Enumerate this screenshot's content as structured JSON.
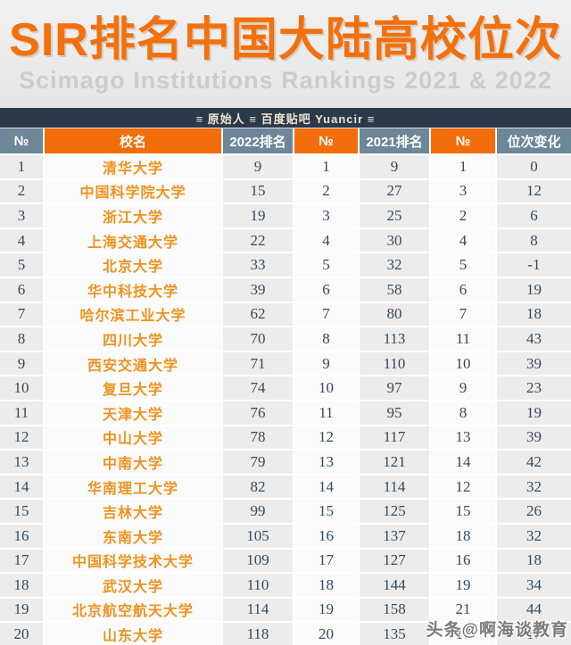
{
  "title": "SIR排名中国大陆高校位次",
  "subtitle": "Scimago Institutions Rankings 2021 & 2022",
  "credit": "≡ 原始人 ≡ 百度贴吧 Yuancir ≡",
  "watermark": "头条@啊海谈教育",
  "colors": {
    "title_orange": "#f2700e",
    "header_orange": "#f46d0b",
    "header_blue_gray": "#6d8698",
    "credit_bar_bg": "#2b3a49",
    "university_orange": "#f0921e",
    "value_text": "#344a5e",
    "cell_gray": "#ececec",
    "cell_white": "#fbfbfb",
    "hero_bg": "#eaeaea"
  },
  "chart_data": {
    "type": "table",
    "title": "SIR排名中国大陆高校位次",
    "subtitle": "Scimago Institutions Rankings 2021 & 2022",
    "columns": [
      "№",
      "校名",
      "2022排名",
      "№",
      "2021排名",
      "№",
      "位次变化"
    ],
    "rows": [
      [
        "1",
        "清华大学",
        "9",
        "1",
        "9",
        "1",
        "0"
      ],
      [
        "2",
        "中国科学院大学",
        "15",
        "2",
        "27",
        "3",
        "12"
      ],
      [
        "3",
        "浙江大学",
        "19",
        "3",
        "25",
        "2",
        "6"
      ],
      [
        "4",
        "上海交通大学",
        "22",
        "4",
        "30",
        "4",
        "8"
      ],
      [
        "5",
        "北京大学",
        "33",
        "5",
        "32",
        "5",
        "-1"
      ],
      [
        "6",
        "华中科技大学",
        "39",
        "6",
        "58",
        "6",
        "19"
      ],
      [
        "7",
        "哈尔滨工业大学",
        "62",
        "7",
        "80",
        "7",
        "18"
      ],
      [
        "8",
        "四川大学",
        "70",
        "8",
        "113",
        "11",
        "43"
      ],
      [
        "9",
        "西安交通大学",
        "71",
        "9",
        "110",
        "10",
        "39"
      ],
      [
        "10",
        "复旦大学",
        "74",
        "10",
        "97",
        "9",
        "23"
      ],
      [
        "11",
        "天津大学",
        "76",
        "11",
        "95",
        "8",
        "19"
      ],
      [
        "12",
        "中山大学",
        "78",
        "12",
        "117",
        "13",
        "39"
      ],
      [
        "13",
        "中南大学",
        "79",
        "13",
        "121",
        "14",
        "42"
      ],
      [
        "14",
        "华南理工大学",
        "82",
        "14",
        "114",
        "12",
        "32"
      ],
      [
        "15",
        "吉林大学",
        "99",
        "15",
        "125",
        "15",
        "26"
      ],
      [
        "16",
        "东南大学",
        "105",
        "16",
        "137",
        "18",
        "32"
      ],
      [
        "17",
        "中国科学技术大学",
        "109",
        "17",
        "127",
        "16",
        "18"
      ],
      [
        "18",
        "武汉大学",
        "110",
        "18",
        "144",
        "19",
        "34"
      ],
      [
        "19",
        "北京航空航天大学",
        "114",
        "19",
        "158",
        "21",
        "44"
      ],
      [
        "20",
        "山东大学",
        "118",
        "20",
        "135",
        "17",
        "17"
      ]
    ]
  }
}
